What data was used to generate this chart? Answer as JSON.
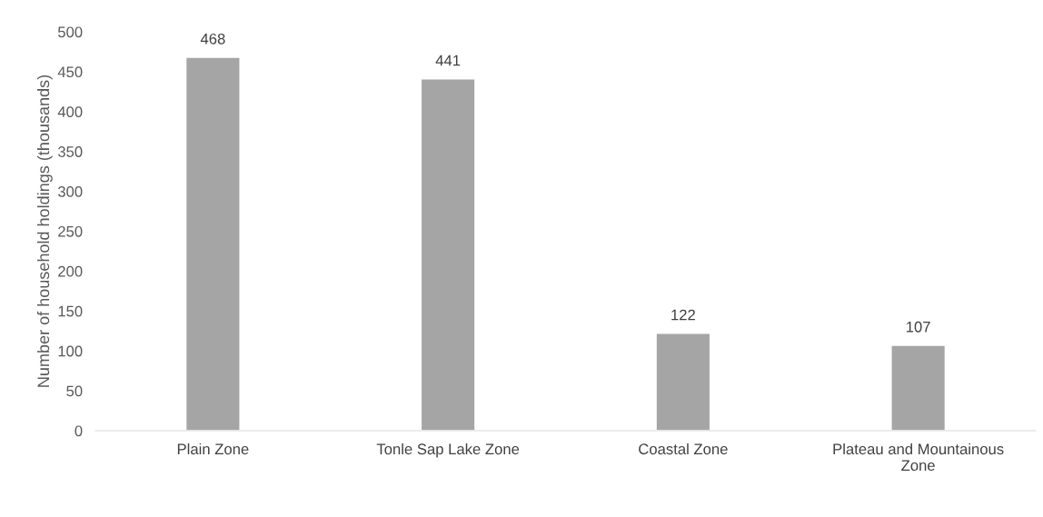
{
  "chart_data": {
    "type": "bar",
    "ylabel": "Number of household holdings (thousands)",
    "categories": [
      "Plain Zone",
      "Tonle Sap Lake Zone",
      "Coastal Zone",
      "Plateau and Mountainous Zone"
    ],
    "values": [
      468,
      441,
      122,
      107
    ],
    "color": "#a5a5a5",
    "ylim": [
      0,
      500
    ],
    "yticks": [
      0,
      50,
      100,
      150,
      200,
      250,
      300,
      350,
      400,
      450,
      500
    ],
    "grid": false,
    "data_labels": true
  }
}
